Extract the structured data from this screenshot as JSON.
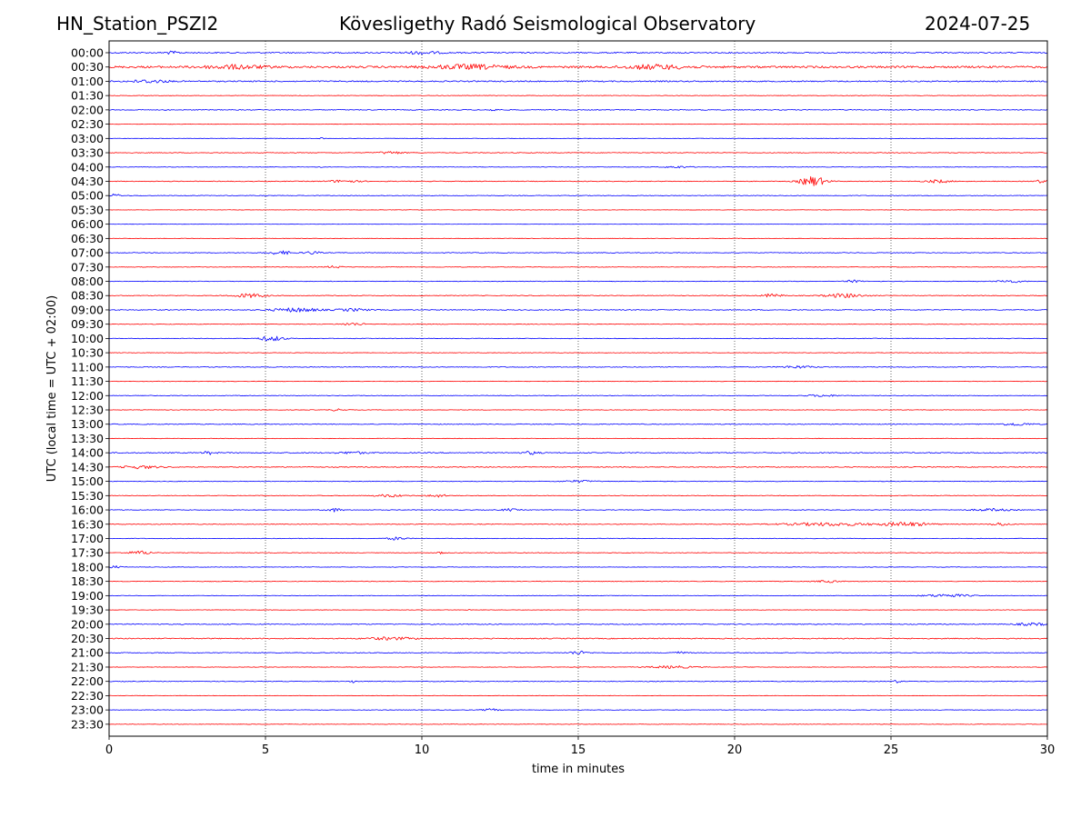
{
  "header": {
    "station": "HN_Station_PSZI2",
    "observatory": "Kövesligethy Radó Seismological Observatory",
    "date": "2024-07-25"
  },
  "chart_data": {
    "type": "line",
    "title": "Kövesligethy Radó Seismological Observatory",
    "xlabel": "time in minutes",
    "ylabel": "UTC (local time = UTC + 02:00)",
    "xlim": [
      0,
      30
    ],
    "xticks": [
      0,
      5,
      10,
      15,
      20,
      25,
      30
    ],
    "grid_x": [
      5,
      10,
      15,
      20,
      25
    ],
    "colors": {
      "even": "#0000ff",
      "odd": "#ff0000"
    },
    "rows": [
      "00:00",
      "00:30",
      "01:00",
      "01:30",
      "02:00",
      "02:30",
      "03:00",
      "03:30",
      "04:00",
      "04:30",
      "05:00",
      "05:30",
      "06:00",
      "06:30",
      "07:00",
      "07:30",
      "08:00",
      "08:30",
      "09:00",
      "09:30",
      "10:00",
      "10:30",
      "11:00",
      "11:30",
      "12:00",
      "12:30",
      "13:00",
      "13:30",
      "14:00",
      "14:30",
      "15:00",
      "15:30",
      "16:00",
      "16:30",
      "17:00",
      "17:30",
      "18:00",
      "18:30",
      "19:00",
      "19:30",
      "20:00",
      "20:30",
      "21:00",
      "21:30",
      "22:00",
      "22:30",
      "23:00",
      "23:30"
    ],
    "noise": [
      1.2,
      2.0,
      1.2,
      0.5,
      0.8,
      0.4,
      0.4,
      0.7,
      0.5,
      0.7,
      0.6,
      0.4,
      0.3,
      0.5,
      0.7,
      0.5,
      0.6,
      0.7,
      0.8,
      0.6,
      0.6,
      0.5,
      0.7,
      0.5,
      0.6,
      0.5,
      0.8,
      0.5,
      1.0,
      0.8,
      0.6,
      0.6,
      0.6,
      0.7,
      0.6,
      0.6,
      0.5,
      0.6,
      0.5,
      0.4,
      0.9,
      1.0,
      0.8,
      0.5,
      0.7,
      0.4,
      0.5,
      0.5
    ],
    "events": [
      {
        "row": 0,
        "t": 2.0,
        "amp": 2.5,
        "dur": 0.5
      },
      {
        "row": 0,
        "t": 10.0,
        "amp": 2.5,
        "dur": 1.2
      },
      {
        "row": 1,
        "t": 4.0,
        "amp": 3.5,
        "dur": 2.0
      },
      {
        "row": 1,
        "t": 11.5,
        "amp": 4.0,
        "dur": 2.5
      },
      {
        "row": 1,
        "t": 17.5,
        "amp": 4.0,
        "dur": 2.0
      },
      {
        "row": 2,
        "t": 1.3,
        "amp": 3.0,
        "dur": 1.2
      },
      {
        "row": 4,
        "t": 12.3,
        "amp": 2.5,
        "dur": 0.3
      },
      {
        "row": 6,
        "t": 6.8,
        "amp": 4.0,
        "dur": 0.1
      },
      {
        "row": 7,
        "t": 9.0,
        "amp": 2.5,
        "dur": 0.8
      },
      {
        "row": 8,
        "t": 6.8,
        "amp": 2.0,
        "dur": 0.1
      },
      {
        "row": 8,
        "t": 18.2,
        "amp": 2.0,
        "dur": 0.8
      },
      {
        "row": 9,
        "t": 7.5,
        "amp": 2.5,
        "dur": 1.0
      },
      {
        "row": 9,
        "t": 22.5,
        "amp": 10.0,
        "dur": 0.8
      },
      {
        "row": 9,
        "t": 26.5,
        "amp": 3.0,
        "dur": 0.8
      },
      {
        "row": 9,
        "t": 29.8,
        "amp": 3.0,
        "dur": 0.4
      },
      {
        "row": 10,
        "t": 0.2,
        "amp": 3.5,
        "dur": 0.3
      },
      {
        "row": 14,
        "t": 5.5,
        "amp": 3.5,
        "dur": 0.8
      },
      {
        "row": 14,
        "t": 6.5,
        "amp": 3.0,
        "dur": 0.5
      },
      {
        "row": 15,
        "t": 7.2,
        "amp": 2.5,
        "dur": 0.5
      },
      {
        "row": 16,
        "t": 23.8,
        "amp": 2.5,
        "dur": 0.5
      },
      {
        "row": 16,
        "t": 28.8,
        "amp": 2.5,
        "dur": 0.8
      },
      {
        "row": 17,
        "t": 4.5,
        "amp": 4.0,
        "dur": 1.0
      },
      {
        "row": 17,
        "t": 21.2,
        "amp": 3.5,
        "dur": 0.6
      },
      {
        "row": 17,
        "t": 23.5,
        "amp": 4.0,
        "dur": 1.2
      },
      {
        "row": 18,
        "t": 6.0,
        "amp": 4.0,
        "dur": 1.5
      },
      {
        "row": 18,
        "t": 7.8,
        "amp": 2.5,
        "dur": 1.0
      },
      {
        "row": 19,
        "t": 7.8,
        "amp": 2.5,
        "dur": 0.8
      },
      {
        "row": 20,
        "t": 5.2,
        "amp": 5.0,
        "dur": 0.8
      },
      {
        "row": 22,
        "t": 22.0,
        "amp": 2.5,
        "dur": 1.0
      },
      {
        "row": 24,
        "t": 22.8,
        "amp": 2.0,
        "dur": 1.0
      },
      {
        "row": 25,
        "t": 7.3,
        "amp": 2.0,
        "dur": 0.5
      },
      {
        "row": 26,
        "t": 29.0,
        "amp": 2.5,
        "dur": 1.0
      },
      {
        "row": 28,
        "t": 3.2,
        "amp": 3.0,
        "dur": 0.4
      },
      {
        "row": 28,
        "t": 7.8,
        "amp": 2.0,
        "dur": 1.0
      },
      {
        "row": 28,
        "t": 13.5,
        "amp": 3.0,
        "dur": 0.5
      },
      {
        "row": 29,
        "t": 1.0,
        "amp": 3.0,
        "dur": 1.2
      },
      {
        "row": 30,
        "t": 15.0,
        "amp": 2.0,
        "dur": 1.0
      },
      {
        "row": 31,
        "t": 9.0,
        "amp": 2.5,
        "dur": 1.0
      },
      {
        "row": 31,
        "t": 10.5,
        "amp": 3.0,
        "dur": 0.6
      },
      {
        "row": 32,
        "t": 7.2,
        "amp": 3.5,
        "dur": 0.5
      },
      {
        "row": 32,
        "t": 12.8,
        "amp": 2.5,
        "dur": 0.5
      },
      {
        "row": 32,
        "t": 28.2,
        "amp": 2.5,
        "dur": 1.2
      },
      {
        "row": 33,
        "t": 23.0,
        "amp": 3.0,
        "dur": 3.0
      },
      {
        "row": 33,
        "t": 25.5,
        "amp": 4.0,
        "dur": 1.5
      },
      {
        "row": 33,
        "t": 28.5,
        "amp": 3.0,
        "dur": 0.6
      },
      {
        "row": 34,
        "t": 9.2,
        "amp": 3.0,
        "dur": 0.6
      },
      {
        "row": 35,
        "t": 1.0,
        "amp": 3.5,
        "dur": 0.8
      },
      {
        "row": 35,
        "t": 10.6,
        "amp": 2.5,
        "dur": 0.2
      },
      {
        "row": 36,
        "t": 0.2,
        "amp": 2.5,
        "dur": 0.4
      },
      {
        "row": 37,
        "t": 23.0,
        "amp": 2.0,
        "dur": 0.8
      },
      {
        "row": 38,
        "t": 26.8,
        "amp": 3.0,
        "dur": 1.5
      },
      {
        "row": 39,
        "t": 11.5,
        "amp": 2.5,
        "dur": 0.1
      },
      {
        "row": 40,
        "t": 29.5,
        "amp": 2.5,
        "dur": 1.0
      },
      {
        "row": 41,
        "t": 9.0,
        "amp": 2.5,
        "dur": 1.5
      },
      {
        "row": 42,
        "t": 15.0,
        "amp": 3.5,
        "dur": 0.6
      },
      {
        "row": 42,
        "t": 18.2,
        "amp": 2.0,
        "dur": 0.6
      },
      {
        "row": 43,
        "t": 18.0,
        "amp": 2.5,
        "dur": 1.5
      },
      {
        "row": 44,
        "t": 7.8,
        "amp": 3.0,
        "dur": 0.2
      },
      {
        "row": 44,
        "t": 25.2,
        "amp": 2.5,
        "dur": 0.3
      },
      {
        "row": 46,
        "t": 12.2,
        "amp": 2.5,
        "dur": 0.5
      }
    ]
  }
}
